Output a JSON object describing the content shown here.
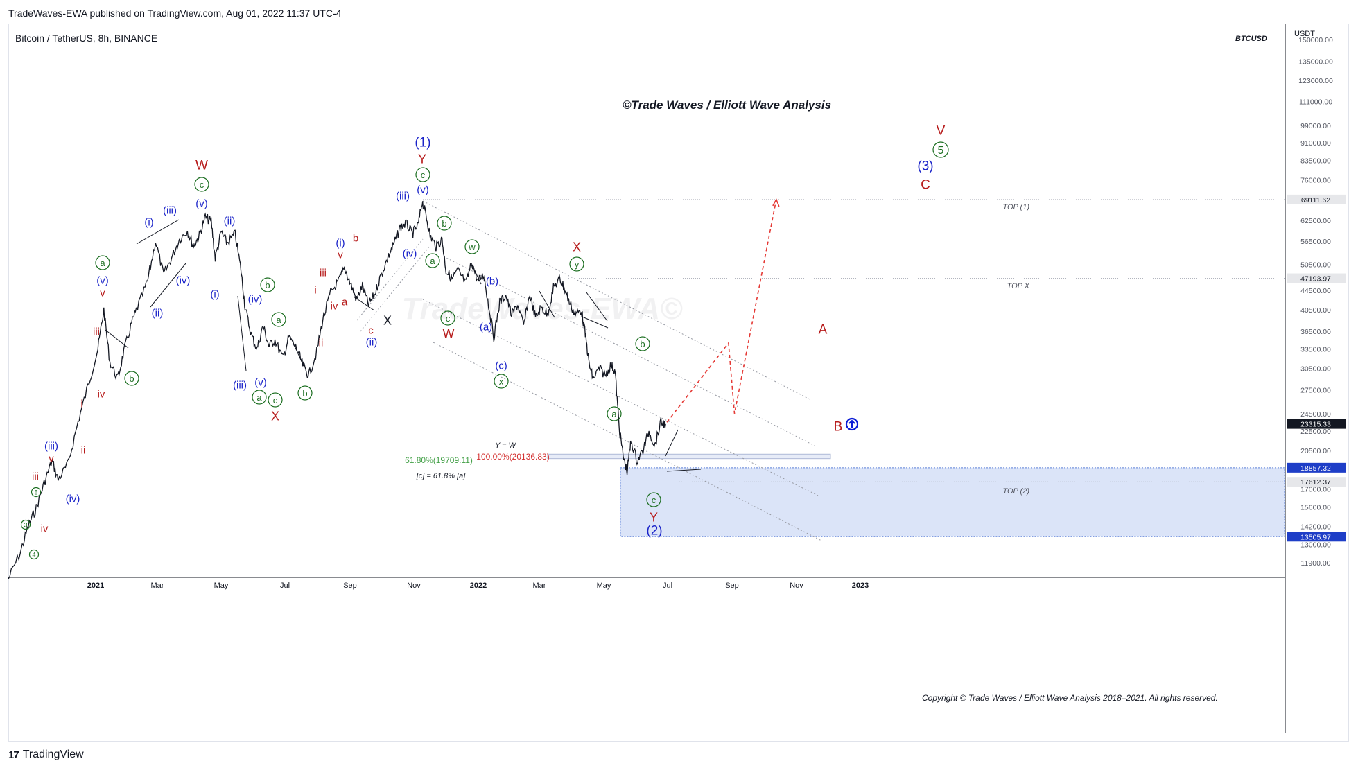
{
  "header": {
    "published_by": "TradeWaves-EWA published on TradingView.com, Aug 01, 2022 11:37 UTC-4",
    "symbol": "Bitcoin / TetherUS, 8h, BINANCE",
    "ticker": "BTCUSD",
    "currency": "USDT"
  },
  "annotations": {
    "brand_title": "©Trade Waves / Elliott Wave Analysis",
    "copyright": "Copyright © Trade Waves / Elliott Wave Analysis 2018–2021. All rights reserved.",
    "watermark": "TradeWaves-EWA©",
    "fib_y_eq_w": "Y = W",
    "fib_100": "100.00%(20136.83)",
    "fib_618": "61.80%(19709.11)",
    "fib_c_rel": "[c] = 61.8% [a]",
    "top1": "TOP (1)",
    "topx": "TOP X",
    "top2": "TOP (2)"
  },
  "footer": {
    "brand": "TradingView",
    "logo": "17"
  },
  "colors": {
    "red": "#b71c1c",
    "blue": "#1a23c9",
    "green": "#1b6e20",
    "black": "#131722",
    "box": "#dbe4f8",
    "projection": "#e53935",
    "navy_badge": "#0c1dd6"
  },
  "chart_data": {
    "type": "line",
    "title": "Bitcoin / TetherUS, 8h, BINANCE",
    "xlabel": "",
    "ylabel": "USDT",
    "y_scale": "log",
    "ylim": [
      11000,
      160000
    ],
    "x_tick_labels": [
      "2021",
      "Mar",
      "May",
      "Jul",
      "Sep",
      "Nov",
      "2022",
      "Mar",
      "May",
      "Jul",
      "Sep",
      "Nov",
      "2023"
    ],
    "y_tick_labels": [
      "150000.00",
      "135000.00",
      "123000.00",
      "111000.00",
      "99000.00",
      "91000.00",
      "83500.00",
      "76000.00",
      "69111.62",
      "62500.00",
      "56500.00",
      "50500.00",
      "47193.97",
      "44500.00",
      "40500.00",
      "36500.00",
      "33500.00",
      "30500.00",
      "27500.00",
      "24500.00",
      "23315.33",
      "22500.00",
      "20500.00",
      "18857.32",
      "17612.37",
      "17000.00",
      "15600.00",
      "14200.00",
      "13505.97",
      "13000.00",
      "11900.00"
    ],
    "price_flags": [
      {
        "value": "69111.62",
        "kind": "gray"
      },
      {
        "value": "47193.97",
        "kind": "gray"
      },
      {
        "value": "23315.33",
        "kind": "dark"
      },
      {
        "value": "18857.32",
        "kind": "blue"
      },
      {
        "value": "17612.37",
        "kind": "gray"
      },
      {
        "value": "13505.97",
        "kind": "blue"
      }
    ],
    "price_path": [
      [
        0,
        11000
      ],
      [
        0.3,
        12500
      ],
      [
        0.5,
        14200
      ],
      [
        0.7,
        15500
      ],
      [
        0.9,
        17500
      ],
      [
        1.1,
        19500
      ],
      [
        1.25,
        17800
      ],
      [
        1.5,
        19200
      ],
      [
        1.75,
        23500
      ],
      [
        2.0,
        28000
      ],
      [
        2.25,
        33500
      ],
      [
        2.4,
        40500
      ],
      [
        2.55,
        31500
      ],
      [
        2.75,
        29000
      ],
      [
        2.9,
        33000
      ],
      [
        3.1,
        38000
      ],
      [
        3.25,
        41000
      ],
      [
        3.5,
        46500
      ],
      [
        3.7,
        56500
      ],
      [
        3.9,
        48000
      ],
      [
        4.1,
        52000
      ],
      [
        4.3,
        57000
      ],
      [
        4.5,
        59500
      ],
      [
        4.65,
        55000
      ],
      [
        4.8,
        58000
      ],
      [
        4.95,
        63500
      ],
      [
        5.1,
        62000
      ],
      [
        5.2,
        52000
      ],
      [
        5.35,
        59000
      ],
      [
        5.5,
        56000
      ],
      [
        5.7,
        58500
      ],
      [
        5.85,
        49000
      ],
      [
        5.95,
        41000
      ],
      [
        6.1,
        36000
      ],
      [
        6.25,
        33500
      ],
      [
        6.4,
        37500
      ],
      [
        6.55,
        34000
      ],
      [
        6.7,
        35000
      ],
      [
        6.9,
        32000
      ],
      [
        7.05,
        35500
      ],
      [
        7.25,
        33500
      ],
      [
        7.4,
        31000
      ],
      [
        7.55,
        29500
      ],
      [
        7.75,
        33000
      ],
      [
        7.9,
        38500
      ],
      [
        8.1,
        44000
      ],
      [
        8.3,
        46500
      ],
      [
        8.45,
        49500
      ],
      [
        8.6,
        46000
      ],
      [
        8.75,
        42500
      ],
      [
        8.9,
        45500
      ],
      [
        9.05,
        41500
      ],
      [
        9.2,
        43500
      ],
      [
        9.35,
        47500
      ],
      [
        9.55,
        52500
      ],
      [
        9.7,
        56000
      ],
      [
        9.85,
        60500
      ],
      [
        10.0,
        61500
      ],
      [
        10.15,
        58500
      ],
      [
        10.3,
        61000
      ],
      [
        10.4,
        68500
      ],
      [
        10.5,
        64000
      ],
      [
        10.6,
        58000
      ],
      [
        10.75,
        55000
      ],
      [
        10.9,
        57000
      ],
      [
        11.0,
        49000
      ],
      [
        11.15,
        47000
      ],
      [
        11.3,
        49000
      ],
      [
        11.5,
        46000
      ],
      [
        11.65,
        51000
      ],
      [
        11.8,
        46500
      ],
      [
        11.95,
        48000
      ],
      [
        12.05,
        42500
      ],
      [
        12.2,
        35500
      ],
      [
        12.35,
        42000
      ],
      [
        12.5,
        43500
      ],
      [
        12.65,
        39500
      ],
      [
        12.8,
        41500
      ],
      [
        12.95,
        37500
      ],
      [
        13.1,
        43500
      ],
      [
        13.25,
        39000
      ],
      [
        13.4,
        41000
      ],
      [
        13.55,
        39500
      ],
      [
        13.7,
        45000
      ],
      [
        13.85,
        47000
      ],
      [
        13.95,
        45500
      ],
      [
        14.1,
        42000
      ],
      [
        14.25,
        39500
      ],
      [
        14.4,
        40500
      ],
      [
        14.5,
        36000
      ],
      [
        14.6,
        31000
      ],
      [
        14.7,
        29000
      ],
      [
        14.85,
        30500
      ],
      [
        15.0,
        29500
      ],
      [
        15.15,
        31000
      ],
      [
        15.25,
        30000
      ],
      [
        15.35,
        23000
      ],
      [
        15.45,
        20000
      ],
      [
        15.55,
        18500
      ],
      [
        15.65,
        21500
      ],
      [
        15.8,
        19500
      ],
      [
        15.95,
        20500
      ],
      [
        16.1,
        22500
      ],
      [
        16.25,
        21000
      ],
      [
        16.4,
        23500
      ],
      [
        16.52,
        23300
      ]
    ],
    "projection": [
      [
        16.55,
        23500
      ],
      [
        18.1,
        34500
      ],
      [
        18.25,
        24500
      ],
      [
        19.3,
        69111.62
      ]
    ],
    "wave_labels": [
      {
        "t": "W",
        "c": "red",
        "x": 291,
        "y": 238,
        "s": 19
      },
      {
        "t": "c",
        "c": "green",
        "x": 291,
        "y": 266,
        "circle": true
      },
      {
        "t": "(v)",
        "c": "blue",
        "x": 291,
        "y": 293
      },
      {
        "t": "(iii)",
        "c": "blue",
        "x": 245,
        "y": 303
      },
      {
        "t": "(i)",
        "c": "blue",
        "x": 215,
        "y": 320
      },
      {
        "t": "(ii)",
        "c": "blue",
        "x": 331,
        "y": 318
      },
      {
        "t": "a",
        "c": "green",
        "x": 148,
        "y": 379,
        "circle": true
      },
      {
        "t": "(v)",
        "c": "blue",
        "x": 148,
        "y": 404
      },
      {
        "t": "v",
        "c": "red",
        "x": 148,
        "y": 422
      },
      {
        "t": "(iv)",
        "c": "blue",
        "x": 264,
        "y": 404
      },
      {
        "t": "(i)",
        "c": "blue",
        "x": 310,
        "y": 424
      },
      {
        "t": "(ii)",
        "c": "blue",
        "x": 227,
        "y": 451
      },
      {
        "t": "iii",
        "c": "red",
        "x": 139,
        "y": 478
      },
      {
        "t": "iv",
        "c": "red",
        "x": 146,
        "y": 568
      },
      {
        "t": "i",
        "c": "red",
        "x": 118,
        "y": 582
      },
      {
        "t": "b",
        "c": "green",
        "x": 190,
        "y": 546,
        "circle": true
      },
      {
        "t": "ii",
        "c": "red",
        "x": 120,
        "y": 649
      },
      {
        "t": "(iii)",
        "c": "blue",
        "x": 74,
        "y": 643
      },
      {
        "t": "v",
        "c": "red",
        "x": 74,
        "y": 661
      },
      {
        "t": "iii",
        "c": "red",
        "x": 51,
        "y": 687
      },
      {
        "t": "(iv)",
        "c": "blue",
        "x": 105,
        "y": 719
      },
      {
        "t": "5",
        "c": "green",
        "x": 52,
        "y": 710,
        "circle": true,
        "small": true
      },
      {
        "t": "3",
        "c": "green",
        "x": 37,
        "y": 757,
        "circle": true,
        "small": true
      },
      {
        "t": "iv",
        "c": "red",
        "x": 64,
        "y": 762
      },
      {
        "t": "4",
        "c": "green",
        "x": 49,
        "y": 800,
        "circle": true,
        "small": true
      },
      {
        "t": "b",
        "c": "green",
        "x": 386,
        "y": 411,
        "circle": true
      },
      {
        "t": "(iv)",
        "c": "blue",
        "x": 368,
        "y": 431
      },
      {
        "t": "a",
        "c": "green",
        "x": 402,
        "y": 461,
        "circle": true
      },
      {
        "t": "(iii)",
        "c": "blue",
        "x": 346,
        "y": 555
      },
      {
        "t": "(v)",
        "c": "blue",
        "x": 376,
        "y": 551
      },
      {
        "t": "a",
        "c": "green",
        "x": 374,
        "y": 573,
        "circle": true
      },
      {
        "t": "c",
        "c": "green",
        "x": 397,
        "y": 577,
        "circle": true
      },
      {
        "t": "b",
        "c": "green",
        "x": 440,
        "y": 567,
        "circle": true
      },
      {
        "t": "X",
        "c": "red",
        "x": 397,
        "y": 600,
        "s": 18
      },
      {
        "t": "(1)",
        "c": "blue",
        "x": 610,
        "y": 205,
        "s": 19
      },
      {
        "t": "Y",
        "c": "red",
        "x": 609,
        "y": 229,
        "s": 18
      },
      {
        "t": "c",
        "c": "green",
        "x": 610,
        "y": 252,
        "circle": true
      },
      {
        "t": "(v)",
        "c": "blue",
        "x": 610,
        "y": 273
      },
      {
        "t": "(iii)",
        "c": "blue",
        "x": 581,
        "y": 282
      },
      {
        "t": "(i)",
        "c": "blue",
        "x": 491,
        "y": 350
      },
      {
        "t": "v",
        "c": "red",
        "x": 491,
        "y": 367
      },
      {
        "t": "b",
        "c": "red",
        "x": 513,
        "y": 343
      },
      {
        "t": "iii",
        "c": "red",
        "x": 466,
        "y": 393
      },
      {
        "t": "(iv)",
        "c": "blue",
        "x": 591,
        "y": 365
      },
      {
        "t": "i",
        "c": "red",
        "x": 455,
        "y": 418
      },
      {
        "t": "a",
        "c": "red",
        "x": 497,
        "y": 435
      },
      {
        "t": "iv",
        "c": "red",
        "x": 482,
        "y": 441
      },
      {
        "t": "ii",
        "c": "red",
        "x": 463,
        "y": 494
      },
      {
        "t": "c",
        "c": "red",
        "x": 535,
        "y": 476
      },
      {
        "t": "X",
        "c": "black",
        "x": 559,
        "y": 462,
        "s": 18
      },
      {
        "t": "(ii)",
        "c": "blue",
        "x": 536,
        "y": 493
      },
      {
        "t": "b",
        "c": "green",
        "x": 641,
        "y": 322,
        "circle": true
      },
      {
        "t": "a",
        "c": "green",
        "x": 624,
        "y": 376,
        "circle": true
      },
      {
        "t": "w",
        "c": "green",
        "x": 681,
        "y": 356,
        "circle": true
      },
      {
        "t": "(b)",
        "c": "blue",
        "x": 710,
        "y": 405
      },
      {
        "t": "c",
        "c": "green",
        "x": 646,
        "y": 459,
        "circle": true
      },
      {
        "t": "W",
        "c": "red",
        "x": 647,
        "y": 481,
        "s": 18
      },
      {
        "t": "(a)",
        "c": "blue",
        "x": 701,
        "y": 471
      },
      {
        "t": "(c)",
        "c": "blue",
        "x": 723,
        "y": 527
      },
      {
        "t": "x",
        "c": "green",
        "x": 723,
        "y": 550,
        "circle": true
      },
      {
        "t": "X",
        "c": "red",
        "x": 832,
        "y": 356,
        "s": 18
      },
      {
        "t": "y",
        "c": "green",
        "x": 832,
        "y": 381,
        "circle": true
      },
      {
        "t": "b",
        "c": "green",
        "x": 927,
        "y": 496,
        "circle": true
      },
      {
        "t": "a",
        "c": "green",
        "x": 886,
        "y": 597,
        "circle": true
      },
      {
        "t": "c",
        "c": "green",
        "x": 943,
        "y": 721,
        "circle": true
      },
      {
        "t": "Y",
        "c": "red",
        "x": 943,
        "y": 746,
        "s": 18
      },
      {
        "t": "(2)",
        "c": "blue",
        "x": 944,
        "y": 765,
        "s": 19
      },
      {
        "t": "V",
        "c": "red",
        "x": 1357,
        "y": 188,
        "s": 19
      },
      {
        "t": "5",
        "c": "green",
        "x": 1357,
        "y": 216,
        "circle": true,
        "big": true
      },
      {
        "t": "(3)",
        "c": "blue",
        "x": 1335,
        "y": 239,
        "s": 19
      },
      {
        "t": "C",
        "c": "red",
        "x": 1335,
        "y": 266,
        "s": 19
      },
      {
        "t": "A",
        "c": "red",
        "x": 1187,
        "y": 475,
        "s": 19
      },
      {
        "t": "B",
        "c": "red",
        "x": 1209,
        "y": 615,
        "s": 19
      }
    ]
  }
}
